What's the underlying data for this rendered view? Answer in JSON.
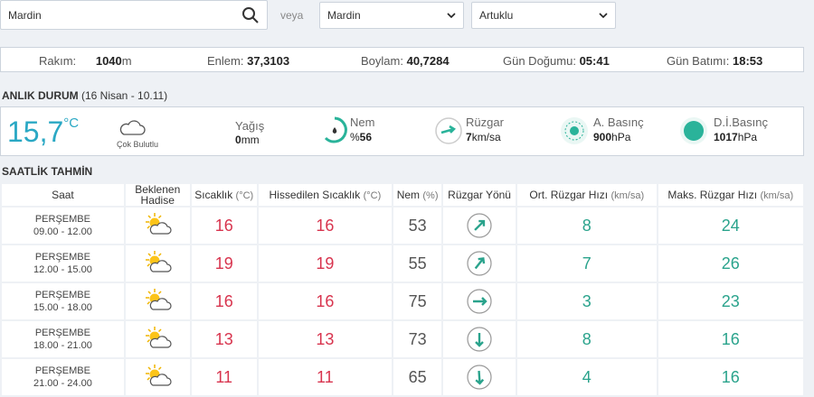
{
  "search": {
    "query": "Mardin",
    "or": "veya",
    "province": "Mardin",
    "district": "Artuklu"
  },
  "location": [
    {
      "label": "Rakım:",
      "value": "1040",
      "unit": "m"
    },
    {
      "label": "Enlem:",
      "value": "37,3103"
    },
    {
      "label": "Boylam:",
      "value": "40,7284"
    },
    {
      "label": "Gün Doğumu:",
      "value": "05:41"
    },
    {
      "label": "Gün Batımı:",
      "value": "18:53"
    }
  ],
  "current": {
    "title": "ANLIK DURUM",
    "date": "(16 Nisan - 10.11)",
    "temperature": "15,7",
    "temperature_unit": "°C",
    "sky": "Çok Bulutlu",
    "precipitation": {
      "label": "Yağış",
      "value": "0",
      "unit": "mm"
    },
    "humidity": {
      "label": "Nem",
      "unit": "%",
      "value": "56"
    },
    "wind": {
      "label": "Rüzgar",
      "value": "7",
      "unit": "km/sa"
    },
    "pressure": {
      "label": "A. Basınç",
      "value": "900",
      "unit": "hPa"
    },
    "sea_pressure": {
      "label": "D.İ.Basınç",
      "value": "1017",
      "unit": "hPa"
    }
  },
  "hourly": {
    "title": "SAATLİK TAHMİN",
    "headers": [
      {
        "label": "Saat"
      },
      {
        "label": "Beklenen Hadise"
      },
      {
        "label": "Sıcaklık",
        "unit": "(°C)"
      },
      {
        "label": "Hissedilen Sıcaklık",
        "unit": "(°C)"
      },
      {
        "label": "Nem",
        "unit": "(%)"
      },
      {
        "label": "Rüzgar Yönü"
      },
      {
        "label": "Ort. Rüzgar Hızı",
        "unit": "(km/sa)"
      },
      {
        "label": "Maks. Rüzgar Hızı",
        "unit": "(km/sa)"
      }
    ],
    "rows": [
      {
        "day": "PERŞEMBE",
        "time": "09.00 - 12.00",
        "temperature": 16,
        "feels_like": 16,
        "humidity": 53,
        "wind_direction_deg": 45,
        "wind_avg": 8,
        "wind_max": 24
      },
      {
        "day": "PERŞEMBE",
        "time": "12.00 - 15.00",
        "temperature": 19,
        "feels_like": 19,
        "humidity": 55,
        "wind_direction_deg": 38,
        "wind_avg": 7,
        "wind_max": 26
      },
      {
        "day": "PERŞEMBE",
        "time": "15.00 - 18.00",
        "temperature": 16,
        "feels_like": 16,
        "humidity": 75,
        "wind_direction_deg": 90,
        "wind_avg": 3,
        "wind_max": 23
      },
      {
        "day": "PERŞEMBE",
        "time": "18.00 - 21.00",
        "temperature": 13,
        "feels_like": 13,
        "humidity": 73,
        "wind_direction_deg": 180,
        "wind_avg": 8,
        "wind_max": 16
      },
      {
        "day": "PERŞEMBE",
        "time": "21.00 - 24.00",
        "temperature": 11,
        "feels_like": 11,
        "humidity": 65,
        "wind_direction_deg": 176,
        "wind_avg": 4,
        "wind_max": 16
      }
    ]
  }
}
